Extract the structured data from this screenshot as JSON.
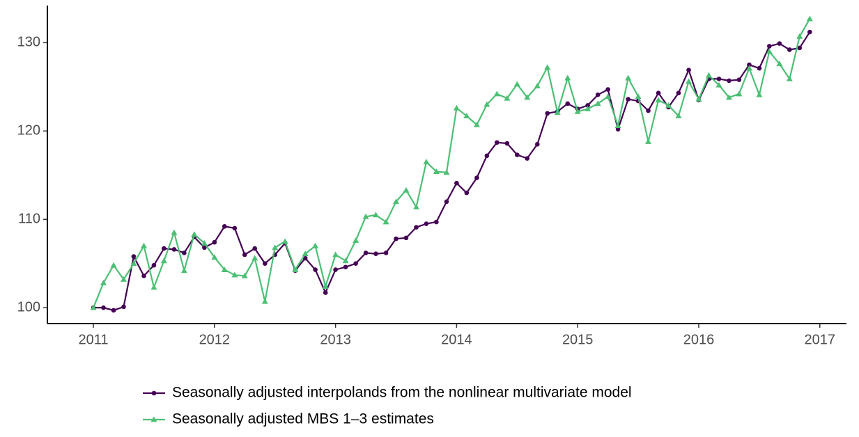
{
  "chart_data": {
    "type": "line",
    "x": [
      2011,
      2011.083,
      2011.167,
      2011.25,
      2011.333,
      2011.417,
      2011.5,
      2011.583,
      2011.667,
      2011.75,
      2011.833,
      2011.917,
      2012,
      2012.083,
      2012.167,
      2012.25,
      2012.333,
      2012.417,
      2012.5,
      2012.583,
      2012.667,
      2012.75,
      2012.833,
      2012.917,
      2013,
      2013.083,
      2013.167,
      2013.25,
      2013.333,
      2013.417,
      2013.5,
      2013.583,
      2013.667,
      2013.75,
      2013.833,
      2013.917,
      2014,
      2014.083,
      2014.167,
      2014.25,
      2014.333,
      2014.417,
      2014.5,
      2014.583,
      2014.667,
      2014.75,
      2014.833,
      2014.917,
      2015,
      2015.083,
      2015.167,
      2015.25,
      2015.333,
      2015.417,
      2015.5,
      2015.583,
      2015.667,
      2015.75,
      2015.833,
      2015.917,
      2016,
      2016.083,
      2016.167,
      2016.25,
      2016.333,
      2016.417,
      2016.5,
      2016.583,
      2016.667,
      2016.75,
      2016.833,
      2016.917
    ],
    "series": [
      {
        "name": "Seasonally adjusted interpolands from the nonlinear multivariate model",
        "color": "#440154",
        "marker": "circle",
        "values": [
          100,
          100,
          99.7,
          100.1,
          105.8,
          103.6,
          104.8,
          106.7,
          106.6,
          106.2,
          108,
          106.8,
          107.4,
          109.2,
          109,
          106,
          106.7,
          105,
          106,
          107.3,
          104.2,
          105.6,
          104.3,
          101.7,
          104.3,
          104.6,
          105,
          106.2,
          106.1,
          106.2,
          107.8,
          107.9,
          109.1,
          109.5,
          109.7,
          112,
          114.1,
          113,
          114.7,
          117.2,
          118.7,
          118.6,
          117.3,
          116.9,
          118.5,
          122,
          122.2,
          123.1,
          122.5,
          122.9,
          124.1,
          124.7,
          120.2,
          123.6,
          123.4,
          122.3,
          124.3,
          122.7,
          124.3,
          126.9,
          123.5,
          125.9,
          125.9,
          125.7,
          125.8,
          127.5,
          127.1,
          129.6,
          129.9,
          129.2,
          129.4,
          131.2
        ]
      },
      {
        "name": "Seasonally adjusted MBS 1–3 estimates",
        "color": "#4cbf74",
        "marker": "triangle",
        "values": [
          100,
          102.8,
          104.8,
          103.2,
          105,
          107,
          102.3,
          105.3,
          108.5,
          104.2,
          108.3,
          107.3,
          105.7,
          104.3,
          103.7,
          103.6,
          105.6,
          100.7,
          106.8,
          107.5,
          104.3,
          106.1,
          107,
          102.4,
          106,
          105.3,
          107.6,
          110.3,
          110.5,
          109.7,
          112,
          113.3,
          111.4,
          116.5,
          115.4,
          115.3,
          122.6,
          121.7,
          120.7,
          123,
          124.2,
          123.7,
          125.3,
          123.8,
          125.1,
          127.2,
          122.1,
          126,
          122.2,
          122.5,
          123.1,
          123.9,
          120.6,
          126,
          123.9,
          118.8,
          123.5,
          122.9,
          121.7,
          125.6,
          123.6,
          126.3,
          125.2,
          123.8,
          124.2,
          127.1,
          124.1,
          129,
          127.6,
          125.9,
          130.7,
          132.7
        ]
      }
    ],
    "xlim": [
      2010.62,
      2017.22
    ],
    "xticks": [
      2011,
      2012,
      2013,
      2014,
      2015,
      2016,
      2017
    ],
    "ylim": [
      98.2,
      134.2
    ],
    "yticks": [
      100,
      110,
      120,
      130
    ],
    "grid": false,
    "legend": "bottom"
  }
}
